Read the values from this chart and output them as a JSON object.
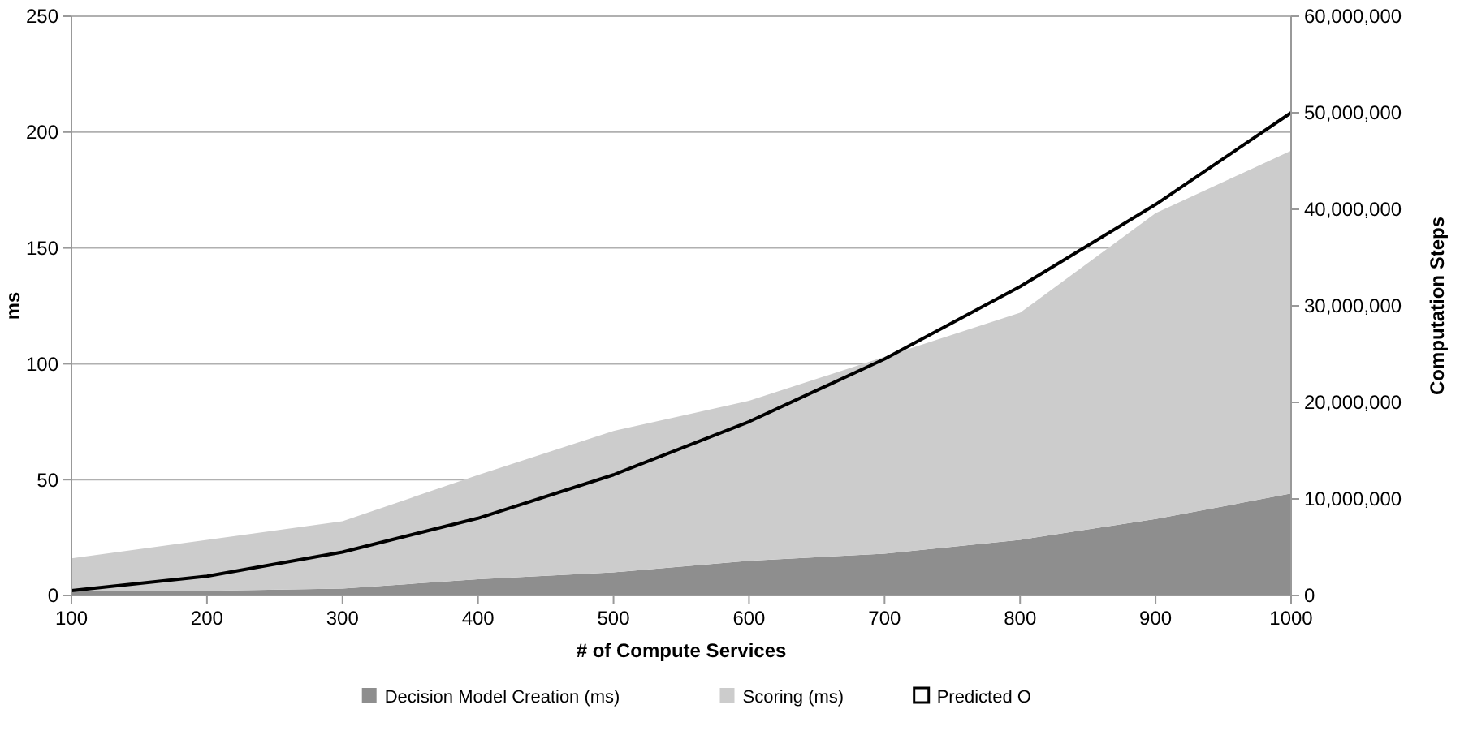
{
  "chart_data": {
    "type": "area",
    "stacked": true,
    "xlabel": "# of Compute Services",
    "ylabel": "ms",
    "y2label": "Computation Steps",
    "x": [
      100,
      200,
      300,
      400,
      500,
      600,
      700,
      800,
      900,
      1000
    ],
    "xlim": [
      100,
      1000
    ],
    "xticks": [
      100,
      200,
      300,
      400,
      500,
      600,
      700,
      800,
      900,
      1000
    ],
    "ylim": [
      0,
      250
    ],
    "yticks": [
      0,
      50,
      100,
      150,
      200,
      250
    ],
    "y2lim": [
      0,
      60000000
    ],
    "y2ticks": [
      {
        "value": 0,
        "label": "0"
      },
      {
        "value": 10000000,
        "label": "10,000,000"
      },
      {
        "value": 20000000,
        "label": "20,000,000"
      },
      {
        "value": 30000000,
        "label": "30,000,000"
      },
      {
        "value": 40000000,
        "label": "40,000,000"
      },
      {
        "value": 50000000,
        "label": "50,000,000"
      },
      {
        "value": 60000000,
        "label": "60,000,000"
      }
    ],
    "grid": "y",
    "legend": "bottom",
    "series": [
      {
        "name": "Decision Model Creation (ms)",
        "color": "#8e8e8e",
        "values": [
          2,
          2,
          3,
          7,
          10,
          15,
          18,
          24,
          33,
          44
        ]
      },
      {
        "name": "Scoring (ms)",
        "color": "#cccccc",
        "values": [
          14,
          22,
          29,
          45,
          61,
          69,
          85,
          98,
          132,
          148
        ]
      },
      {
        "name": "Predicted O",
        "type": "line",
        "axis": "y2",
        "color": "#000000",
        "values": [
          500000,
          2000000,
          4500000,
          8000000,
          12500000,
          18000000,
          24500000,
          32000000,
          40500000,
          50000000
        ]
      }
    ]
  }
}
